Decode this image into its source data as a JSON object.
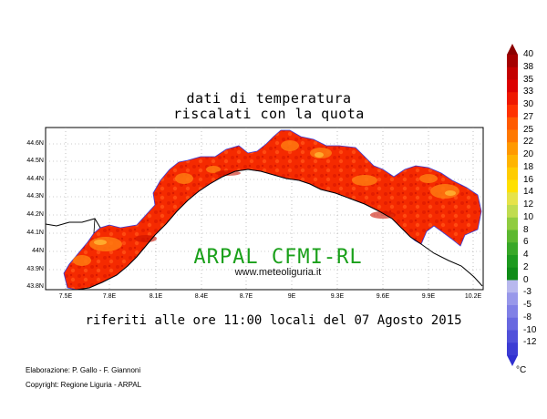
{
  "title": {
    "line1": "dati di temperatura",
    "line2": "riscalati con la quota"
  },
  "watermark": {
    "main": "ARPAL CFMI-RL",
    "site": "www.meteoliguria.it"
  },
  "subtitle": "riferiti alle ore 11:00 locali del 07 Agosto 2015",
  "credits": {
    "line1": "Elaborazione: P. Gallo - F. Giannoni",
    "line2": "Copyright: Regione Liguria - ARPAL"
  },
  "axes": {
    "lat_ticks": [
      "44.6N",
      "44.5N",
      "44.4N",
      "44.3N",
      "44.2N",
      "44.1N",
      "44N",
      "43.9N",
      "43.8N"
    ],
    "lon_ticks": [
      "7.5E",
      "7.8E",
      "8.1E",
      "8.4E",
      "8.7E",
      "9E",
      "9.3E",
      "9.6E",
      "9.9E",
      "10.2E"
    ],
    "grid": "dotted"
  },
  "colorbar": {
    "unit": "°C",
    "labels": [
      "40",
      "38",
      "35",
      "33",
      "30",
      "27",
      "25",
      "22",
      "20",
      "18",
      "16",
      "14",
      "12",
      "10",
      "8",
      "6",
      "4",
      "2",
      "0",
      "-3",
      "-5",
      "-8",
      "-10",
      "-12"
    ],
    "colors": [
      "#a50000",
      "#c40000",
      "#dc0000",
      "#ee1800",
      "#ff3200",
      "#ff5a00",
      "#ff7800",
      "#ff9900",
      "#ffb400",
      "#ffcc00",
      "#ffe000",
      "#e6e34a",
      "#c0dc50",
      "#90cc40",
      "#5cb830",
      "#38a828",
      "#1d9a1f",
      "#0f8c18",
      "#b8b8ee",
      "#9898ea",
      "#8080e6",
      "#6868e0",
      "#5050da",
      "#3c3cd4"
    ]
  },
  "colors": {
    "map_base": "#ff3300",
    "watermark_green": "#1aa01a",
    "coast_blue": "#3a3ad8"
  }
}
